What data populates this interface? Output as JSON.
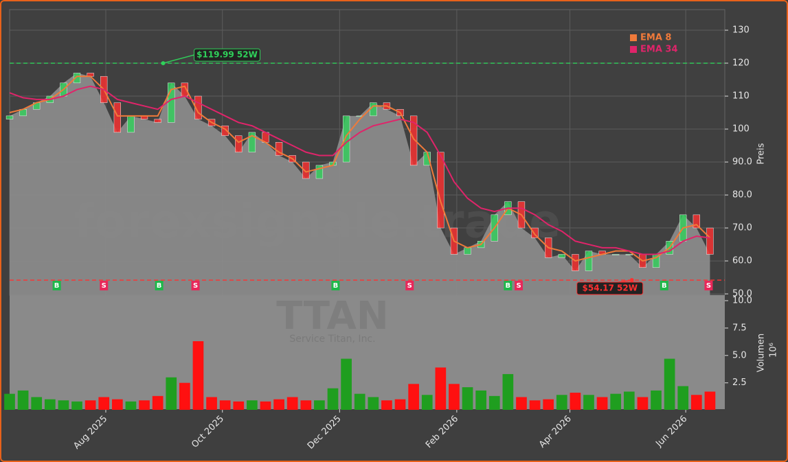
{
  "chart_data": [
    {
      "type": "candlestick",
      "ylabel": "Preis",
      "watermark": "forexsignale.trade",
      "xlim": [
        0,
        53.1
      ],
      "x": [
        0,
        1,
        2,
        3,
        4,
        5,
        6,
        7,
        8,
        9,
        10,
        11,
        12,
        13,
        14,
        15,
        16,
        17,
        18,
        19,
        20,
        21,
        22,
        23,
        24,
        25,
        26,
        27,
        28,
        29,
        30,
        31,
        32,
        33,
        34,
        35,
        36,
        37,
        38,
        39,
        40,
        41,
        42,
        43,
        44,
        45,
        46,
        47,
        48,
        49,
        50,
        51,
        52
      ],
      "open": [
        103,
        104,
        106,
        108,
        110,
        114,
        117,
        116,
        108,
        99,
        104,
        103,
        102,
        114,
        110,
        103,
        101,
        98,
        93,
        99,
        96,
        92,
        90,
        85,
        89,
        90,
        104,
        104,
        108,
        106,
        104,
        89,
        93,
        70,
        62,
        64,
        66,
        74,
        78,
        70,
        67,
        61,
        62,
        57,
        63,
        62,
        62,
        62,
        58,
        62,
        66,
        74,
        70
      ],
      "close": [
        104,
        106,
        108,
        110,
        114,
        117,
        116,
        108,
        99,
        104,
        103,
        102,
        114,
        110,
        103,
        101,
        98,
        93,
        99,
        96,
        92,
        90,
        85,
        89,
        90,
        104,
        104,
        108,
        106,
        104,
        89,
        93,
        70,
        62,
        64,
        66,
        74,
        78,
        70,
        67,
        61,
        62,
        57,
        63,
        62,
        62,
        62,
        58,
        62,
        66,
        74,
        70,
        62
      ],
      "up_color": "#2fd15a",
      "down_color": "#ff3030",
      "area_color": "#8a8a8a",
      "series": [
        {
          "name": "EMA 8",
          "color": "#f07a3a",
          "values": [
            105,
            106,
            108,
            109,
            112,
            116,
            116,
            112,
            104,
            104,
            104,
            104,
            112,
            113,
            105,
            102,
            100,
            96,
            98,
            96,
            93,
            91,
            87,
            88,
            89,
            98,
            103,
            107,
            107,
            105,
            97,
            93,
            78,
            66,
            64,
            65,
            70,
            76,
            74,
            68,
            64,
            63,
            60,
            61,
            62,
            63,
            63,
            60,
            61,
            64,
            70,
            71,
            67
          ]
        },
        {
          "name": "EMA 34",
          "color": "#e0246a",
          "values": [
            111,
            109.5,
            109,
            109,
            110,
            112,
            113,
            112,
            109,
            108,
            107,
            106,
            109,
            110,
            108,
            106,
            104,
            102,
            101,
            99,
            97,
            95,
            93,
            92,
            92,
            96,
            99,
            101,
            102,
            103,
            102,
            99,
            92,
            84,
            79,
            76,
            75,
            76,
            76,
            74,
            71,
            69,
            66,
            65,
            64,
            64,
            63,
            62,
            62,
            63,
            66,
            67.5,
            67
          ]
        }
      ],
      "ylim": [
        49.6,
        136.25
      ],
      "yticks": [
        130,
        120,
        110,
        100,
        {
          "value": 90,
          "label": "90.0"
        },
        {
          "value": 80,
          "label": "80.0"
        },
        {
          "value": 70,
          "label": "70.0"
        },
        {
          "value": 60,
          "label": "60.0"
        },
        {
          "value": 50,
          "label": "50.0"
        }
      ],
      "grid": true,
      "annotations": [
        {
          "text": "$119.99 52W",
          "value": 119.99,
          "x": 11.4,
          "color": "#2fd15a"
        },
        {
          "text": "$54.17 52W",
          "value": 54.17,
          "x": 46.2,
          "color": "#ff3030"
        }
      ],
      "signals": [
        {
          "x": 3.5,
          "label": "B"
        },
        {
          "x": 7.0,
          "label": "S"
        },
        {
          "x": 11.1,
          "label": "B"
        },
        {
          "x": 13.8,
          "label": "S"
        },
        {
          "x": 24.2,
          "label": "B"
        },
        {
          "x": 29.7,
          "label": "S"
        },
        {
          "x": 37.0,
          "label": "B"
        },
        {
          "x": 37.8,
          "label": "S"
        },
        {
          "x": 48.6,
          "label": "B"
        },
        {
          "x": 51.9,
          "label": "S"
        }
      ]
    },
    {
      "type": "bar",
      "ylabel": "Volumen",
      "yunit": "10⁶",
      "watermark": "TTAN",
      "subwatermark": "Service Titan, Inc.",
      "xlim": [
        0,
        53.1
      ],
      "x": [
        0,
        1,
        2,
        3,
        4,
        5,
        6,
        7,
        8,
        9,
        10,
        11,
        12,
        13,
        14,
        15,
        16,
        17,
        18,
        19,
        20,
        21,
        22,
        23,
        24,
        25,
        26,
        27,
        28,
        29,
        30,
        31,
        32,
        33,
        34,
        35,
        36,
        37,
        38,
        39,
        40,
        41,
        42,
        43,
        44,
        45,
        46,
        47,
        48,
        49,
        50,
        51,
        52
      ],
      "values": [
        1.5,
        1.8,
        1.2,
        1.0,
        0.9,
        0.8,
        0.9,
        1.2,
        1.0,
        0.8,
        0.9,
        1.3,
        3.0,
        2.5,
        6.3,
        1.2,
        0.9,
        0.8,
        0.9,
        0.8,
        1.0,
        1.2,
        0.9,
        0.9,
        2.0,
        4.7,
        1.5,
        1.2,
        0.9,
        1.0,
        2.4,
        1.4,
        3.9,
        2.4,
        2.1,
        1.8,
        1.3,
        3.3,
        1.2,
        0.9,
        1.0,
        1.4,
        1.6,
        1.4,
        1.2,
        1.5,
        1.7,
        1.2,
        1.8,
        4.7,
        2.2,
        1.4,
        1.7
      ],
      "up_color": "#1f9e1f",
      "down_color": "#ff1010",
      "ylim": [
        0.1,
        10.5
      ],
      "yticks": [
        {
          "value": 10,
          "label": "10.0"
        },
        7.5,
        {
          "value": 5,
          "label": "5.0"
        },
        2.5
      ],
      "xticks": [
        {
          "value": 7.14,
          "label": "Aug 2025"
        },
        {
          "value": 15.8,
          "label": "Oct 2025"
        },
        {
          "value": 24.5,
          "label": "Dec 2025"
        },
        {
          "value": 33.2,
          "label": "Feb 2026"
        },
        {
          "value": 41.6,
          "label": "Apr 2026"
        },
        {
          "value": 50.2,
          "label": "Jun 2026"
        }
      ]
    }
  ]
}
